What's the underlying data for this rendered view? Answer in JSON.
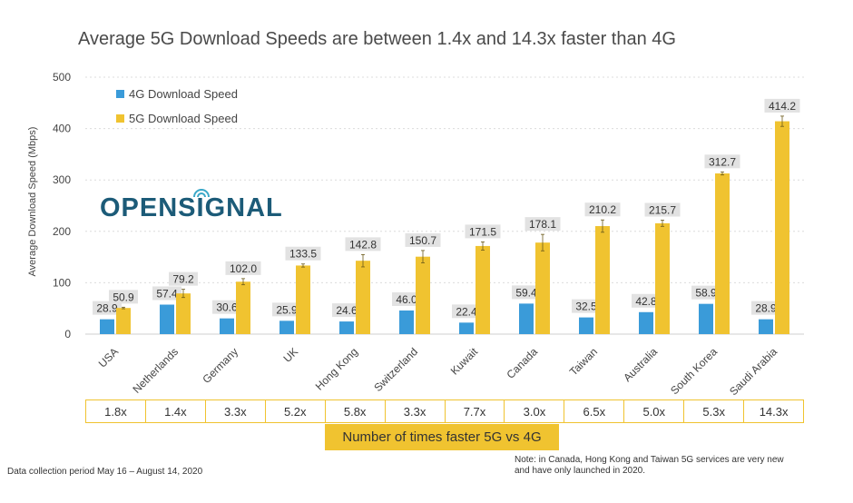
{
  "title": "Average 5G Download Speeds are between 1.4x and 14.3x faster than 4G",
  "logo_text": "OPENSIGNAL",
  "ratio_label": "Number of times faster 5G vs 4G",
  "ratios": [
    "1.8x",
    "1.4x",
    "3.3x",
    "5.2x",
    "5.8x",
    "3.3x",
    "7.7x",
    "3.0x",
    "6.5x",
    "5.0x",
    "5.3x",
    "14.3x"
  ],
  "footnote_left": "Data collection period May 16 – August 14, 2020",
  "footnote_right": "Note: in Canada, Hong Kong and Taiwan 5G services are very new and have only launched in 2020.",
  "colors": {
    "series_4g": "#3a9bd9",
    "series_5g": "#f0c330",
    "logo": "#1c5b78",
    "label_bg": "#e2e2e2"
  },
  "chart_data": {
    "type": "bar",
    "ylabel": "Average Download Speed (Mbps)",
    "xlabel": "",
    "ylim": [
      0,
      500
    ],
    "yticks": [
      0,
      100,
      200,
      300,
      400,
      500
    ],
    "grid": true,
    "legend_position": "top-left",
    "categories": [
      "USA",
      "Netherlands",
      "Germany",
      "UK",
      "Hong Kong",
      "Switzerland",
      "Kuwait",
      "Canada",
      "Taiwan",
      "Australia",
      "South Korea",
      "Saudi Arabia"
    ],
    "series": [
      {
        "name": "4G Download Speed",
        "values": [
          28.9,
          57.4,
          30.6,
          25.9,
          24.6,
          46.0,
          22.4,
          59.4,
          32.5,
          42.8,
          58.9,
          28.9
        ]
      },
      {
        "name": "5G Download Speed",
        "values": [
          50.9,
          79.2,
          102.0,
          133.5,
          142.8,
          150.7,
          171.5,
          178.1,
          210.2,
          215.7,
          312.7,
          414.2
        ]
      }
    ],
    "value_labels": [
      [
        "28.9",
        "57.4",
        "30.6",
        "25.9",
        "24.6",
        "46.0",
        "22.4",
        "59.4",
        "32.5",
        "42.8",
        "58.9",
        "28.9"
      ],
      [
        "50.9",
        "79.2",
        "102.0",
        "133.5",
        "142.8",
        "150.7",
        "171.5",
        "178.1",
        "210.2",
        "215.7",
        "312.7",
        "414.2"
      ]
    ],
    "error_bars": {
      "4G Download Speed": [
        0.5,
        0.5,
        0.5,
        0.5,
        0.5,
        0.5,
        0.5,
        0.5,
        0.5,
        0.5,
        0.5,
        0.5
      ],
      "5G Download Speed": [
        1.5,
        8,
        6,
        3,
        12,
        12,
        8,
        16,
        12,
        6,
        3,
        10
      ]
    }
  }
}
